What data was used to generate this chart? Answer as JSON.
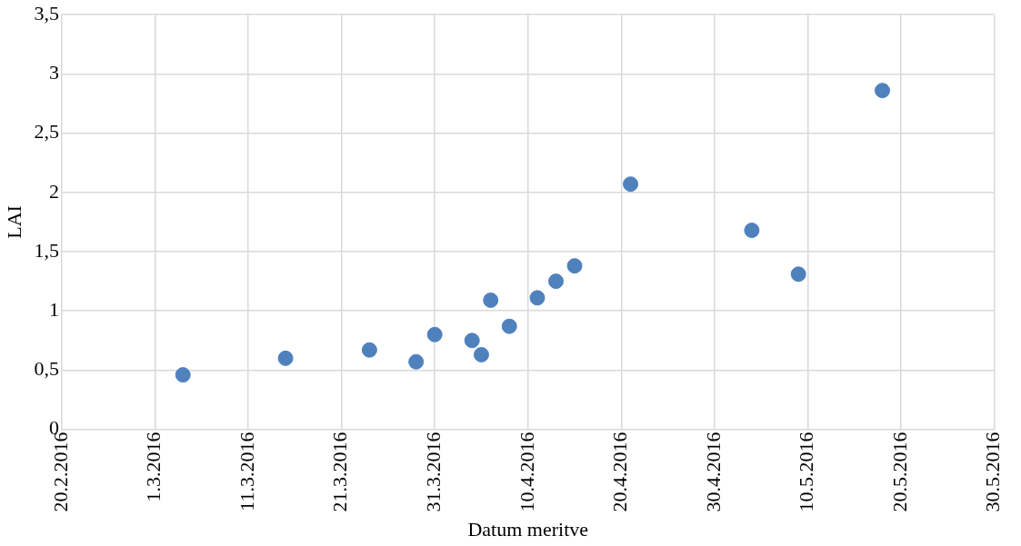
{
  "chart_data": {
    "type": "scatter",
    "xlabel": "Datum meritve",
    "ylabel": "LAI",
    "x": [
      "2016-03-04",
      "2016-03-15",
      "2016-03-24",
      "2016-03-29",
      "2016-03-31",
      "2016-04-04",
      "2016-04-05",
      "2016-04-06",
      "2016-04-08",
      "2016-04-11",
      "2016-04-13",
      "2016-04-15",
      "2016-04-21",
      "2016-05-04",
      "2016-05-09",
      "2016-05-18"
    ],
    "series": [
      {
        "color": "#4f81bd",
        "values": [
          0.46,
          0.6,
          0.67,
          0.57,
          0.8,
          0.75,
          0.63,
          1.09,
          0.87,
          1.11,
          1.25,
          1.38,
          2.07,
          1.68,
          1.31,
          2.86
        ]
      }
    ],
    "xlim": [
      "2016-02-20",
      "2016-05-30"
    ],
    "xticks": [
      {
        "value": "2016-02-20",
        "label": "20.2.2016"
      },
      {
        "value": "2016-03-01",
        "label": "1.3.2016"
      },
      {
        "value": "2016-03-11",
        "label": "11.3.2016"
      },
      {
        "value": "2016-03-21",
        "label": "21.3.2016"
      },
      {
        "value": "2016-03-31",
        "label": "31.3.2016"
      },
      {
        "value": "2016-04-10",
        "label": "10.4.2016"
      },
      {
        "value": "2016-04-20",
        "label": "20.4.2016"
      },
      {
        "value": "2016-04-30",
        "label": "30.4.2016"
      },
      {
        "value": "2016-05-10",
        "label": "10.5.2016"
      },
      {
        "value": "2016-05-20",
        "label": "20.5.2016"
      },
      {
        "value": "2016-05-30",
        "label": "30.5.2016"
      }
    ],
    "ylim": [
      0,
      3.5
    ],
    "yticks": [
      0,
      {
        "value": 0.5,
        "label": "0,5"
      },
      1,
      {
        "value": 1.5,
        "label": "1,5"
      },
      2,
      {
        "value": 2.5,
        "label": "2,5"
      },
      3,
      {
        "value": 3.5,
        "label": "3,5"
      }
    ],
    "grid": true,
    "legend": false,
    "marker": "circle"
  }
}
